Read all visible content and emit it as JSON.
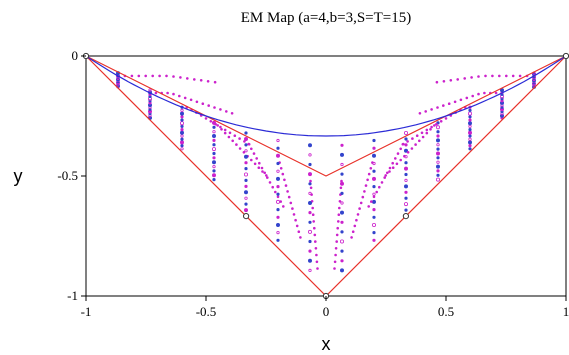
{
  "chart_data": {
    "type": "scatter",
    "title": "EM Map (a=4,b=3,S=T=15)",
    "xlabel": "x",
    "ylabel": "y",
    "xlim": [
      -1,
      1
    ],
    "ylim": [
      -1,
      0
    ],
    "xticks": [
      -1,
      -0.5,
      0,
      0.5,
      1
    ],
    "xtick_labels": [
      "-1",
      "-0.5",
      "0",
      "0.5",
      "1"
    ],
    "yticks": [
      0,
      -0.5,
      -1
    ],
    "ytick_labels": [
      "0",
      "-0.5",
      "-1"
    ],
    "grid": false,
    "colors": {
      "boundary_lines": "#e8312a",
      "upper_curve": "#2b2bd6",
      "points_a": "#cc22cc",
      "points_b": "#3344cc"
    },
    "series": [
      {
        "kind": "line",
        "values": [
          [
            -1,
            0
          ],
          [
            0,
            -1
          ],
          [
            1,
            0
          ]
        ]
      },
      {
        "kind": "line",
        "values": [
          [
            -1,
            0
          ],
          [
            0,
            -0.5
          ],
          [
            1,
            0
          ]
        ]
      },
      {
        "kind": "line",
        "values": [
          [
            -1,
            0
          ],
          [
            -0.5,
            -0.264
          ],
          [
            0,
            -0.333
          ],
          [
            0.5,
            -0.264
          ],
          [
            1,
            0
          ]
        ]
      },
      {
        "kind": "marker",
        "values": [
          [
            -1,
            0
          ],
          [
            1,
            0
          ],
          [
            0,
            -1
          ],
          [
            -0.333,
            -0.667
          ],
          [
            0.333,
            -0.667
          ]
        ]
      }
    ],
    "grid_scatter": {
      "S": 15,
      "T": 15
    }
  }
}
